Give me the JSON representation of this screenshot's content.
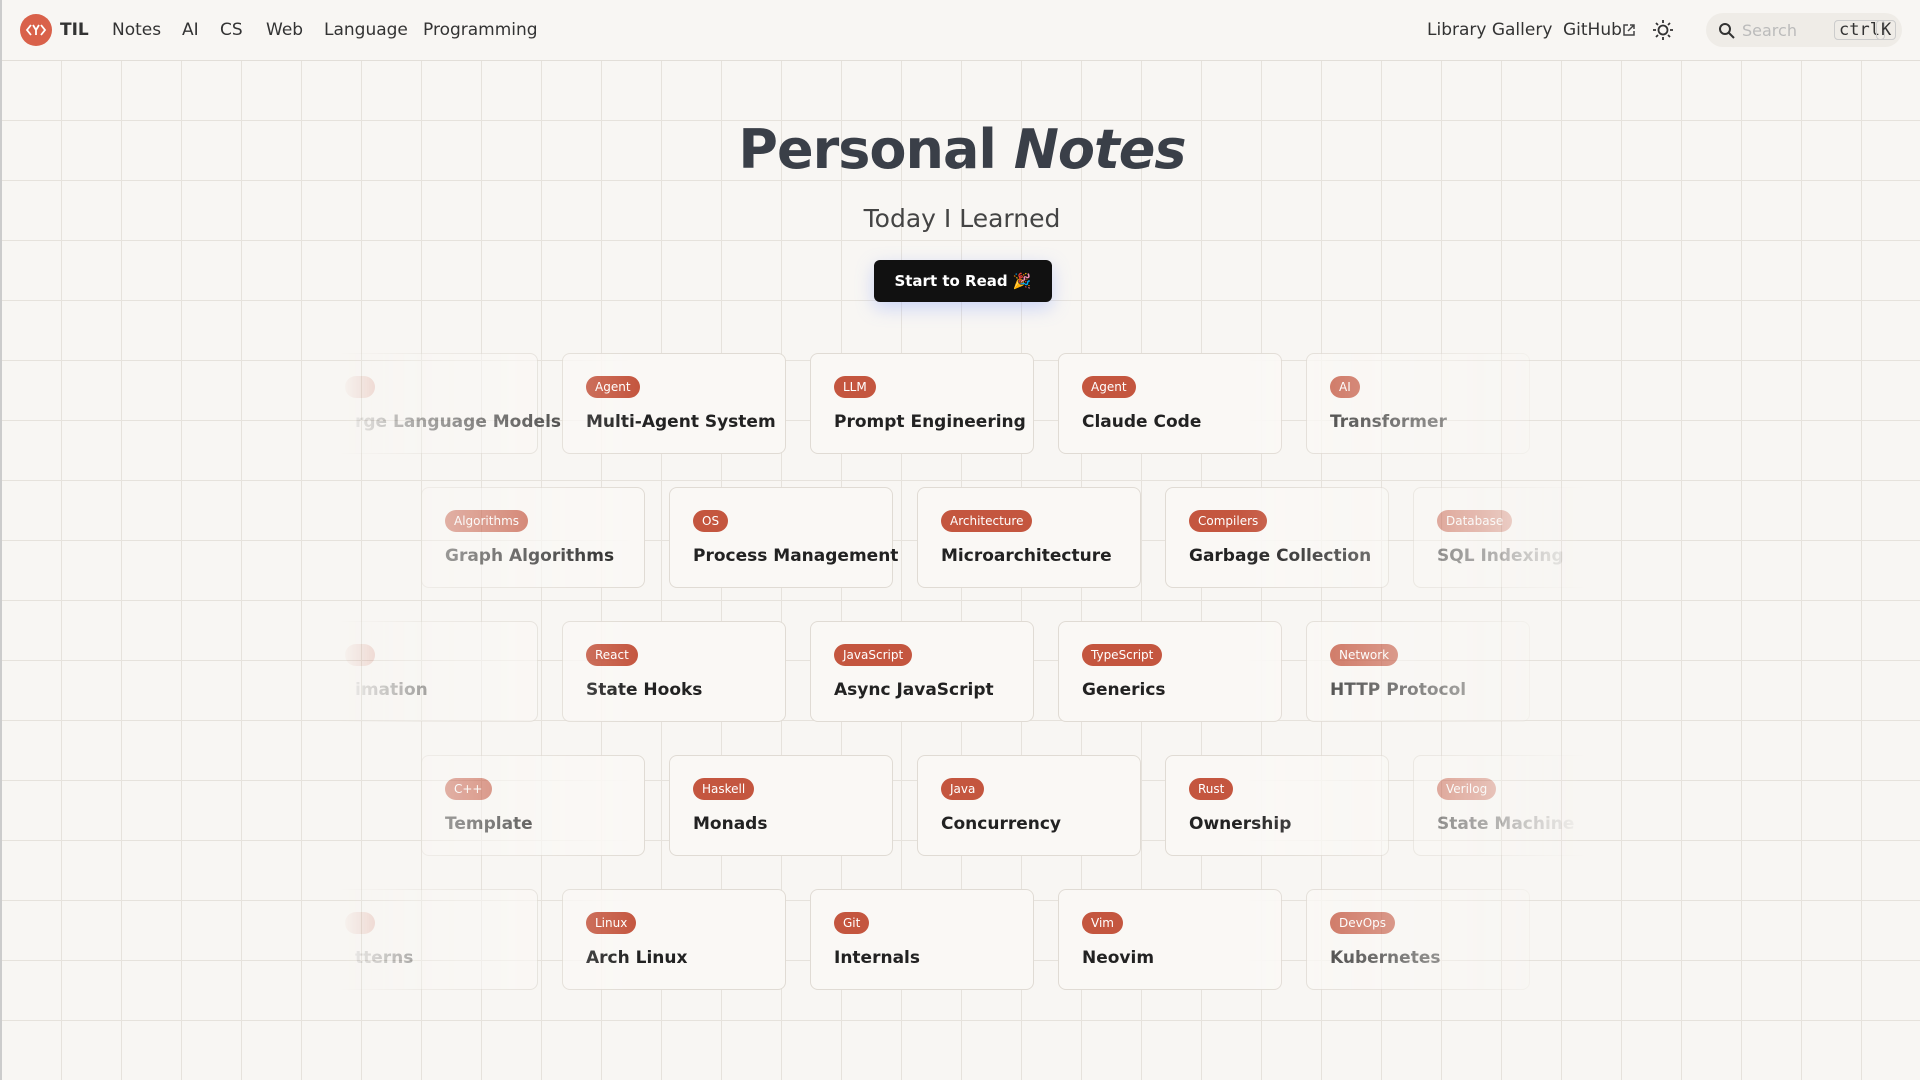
{
  "nav": {
    "brand": "TIL",
    "links": [
      "Notes",
      "AI",
      "CS",
      "Web",
      "Language",
      "Programming"
    ],
    "right_links": [
      "Library Gallery",
      "GitHub"
    ],
    "search_placeholder": "Search",
    "shortcut": [
      "ctrl",
      "K"
    ]
  },
  "hero": {
    "title": "Personal",
    "title_emphasis": "Notes",
    "subtitle": "Today I Learned",
    "button": "Start to Read 🎉"
  },
  "cards": [
    [
      {
        "title": "rge Language Models"
      },
      {
        "tag": "Agent",
        "title": "Multi-Agent System"
      },
      {
        "tag": "LLM",
        "title": "Prompt Engineering"
      },
      {
        "tag": "Agent",
        "title": "Claude Code"
      },
      {
        "tag": "AI",
        "title": "Transformer"
      }
    ],
    [
      {
        "tag": "Algorithms",
        "title": "Graph Algorithms"
      },
      {
        "tag": "OS",
        "title": "Process Management"
      },
      {
        "tag": "Architecture",
        "title": "Microarchitecture"
      },
      {
        "tag": "Compilers",
        "title": "Garbage Collection"
      },
      {
        "tag": "Database",
        "title": "SQL Indexing"
      }
    ],
    [
      {
        "title": "imation"
      },
      {
        "tag": "React",
        "title": "State Hooks"
      },
      {
        "tag": "JavaScript",
        "title": "Async JavaScript"
      },
      {
        "tag": "TypeScript",
        "title": "Generics"
      },
      {
        "tag": "Network",
        "title": "HTTP Protocol"
      }
    ],
    [
      {
        "tag": "C++",
        "title": "Template"
      },
      {
        "tag": "Haskell",
        "title": "Monads"
      },
      {
        "tag": "Java",
        "title": "Concurrency"
      },
      {
        "tag": "Rust",
        "title": "Ownership"
      },
      {
        "tag": "Verilog",
        "title": "State Machine"
      }
    ],
    [
      {
        "title": "tterns"
      },
      {
        "tag": "Linux",
        "title": "Arch Linux"
      },
      {
        "tag": "Git",
        "title": "Internals"
      },
      {
        "tag": "Vim",
        "title": "Neovim"
      },
      {
        "tag": "DevOps",
        "title": "Kubernetes"
      }
    ]
  ]
}
